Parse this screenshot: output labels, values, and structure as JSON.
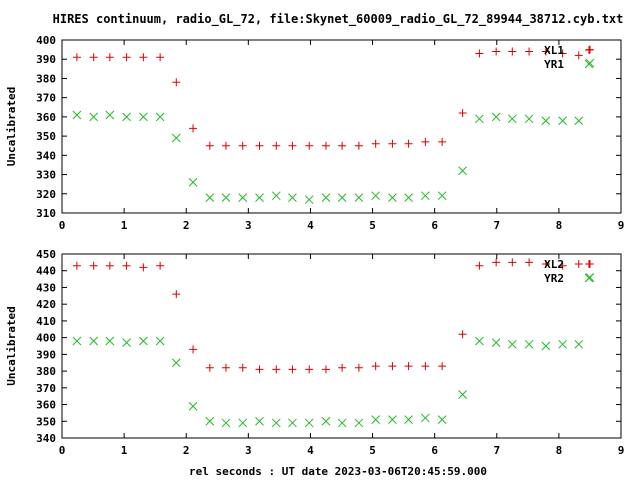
{
  "title": "HIRES continuum, radio_GL_72, file:Skynet_60009_radio_GL_72_89944_38712.cyb.txt",
  "xlabel": "rel seconds : UT date 2023-03-06T20:45:59.000",
  "colors": {
    "series1": "#dd0000",
    "series2": "#22bb22",
    "axis": "#000000"
  },
  "chart_data": [
    {
      "type": "scatter",
      "ylabel": "Uncalibrated",
      "xlim": [
        0,
        9
      ],
      "ylim": [
        310,
        400
      ],
      "xticks": [
        0,
        1,
        2,
        3,
        4,
        5,
        6,
        7,
        8,
        9
      ],
      "yticks": [
        310,
        320,
        330,
        340,
        350,
        360,
        370,
        380,
        390,
        400
      ],
      "legend_position": "top-right",
      "series": [
        {
          "name": "XL1",
          "marker": "plus",
          "color": "#dd0000",
          "x": [
            0.24,
            0.51,
            0.77,
            1.04,
            1.31,
            1.58,
            1.84,
            2.11,
            2.38,
            2.64,
            2.91,
            3.18,
            3.45,
            3.71,
            3.98,
            4.25,
            4.51,
            4.78,
            5.05,
            5.32,
            5.58,
            5.85,
            6.12,
            6.45,
            6.72,
            6.99,
            7.25,
            7.52,
            7.79,
            8.06,
            8.32,
            8.5
          ],
          "y": [
            391,
            391,
            391,
            391,
            391,
            391,
            378,
            354,
            345,
            345,
            345,
            345,
            345,
            345,
            345,
            345,
            345,
            345,
            346,
            346,
            346,
            347,
            347,
            362,
            393,
            394,
            394,
            394,
            394,
            393,
            392,
            395
          ]
        },
        {
          "name": "YR1",
          "marker": "cross",
          "color": "#22bb22",
          "x": [
            0.24,
            0.51,
            0.77,
            1.04,
            1.31,
            1.58,
            1.84,
            2.11,
            2.38,
            2.64,
            2.91,
            3.18,
            3.45,
            3.71,
            3.98,
            4.25,
            4.51,
            4.78,
            5.05,
            5.32,
            5.58,
            5.85,
            6.12,
            6.45,
            6.72,
            6.99,
            7.25,
            7.52,
            7.79,
            8.06,
            8.32,
            8.5
          ],
          "y": [
            361,
            360,
            361,
            360,
            360,
            360,
            349,
            326,
            318,
            318,
            318,
            318,
            319,
            318,
            317,
            318,
            318,
            318,
            319,
            318,
            318,
            319,
            319,
            332,
            359,
            360,
            359,
            359,
            358,
            358,
            358,
            388
          ]
        }
      ]
    },
    {
      "type": "scatter",
      "ylabel": "Uncalibrated",
      "xlim": [
        0,
        9
      ],
      "ylim": [
        340,
        450
      ],
      "xticks": [
        0,
        1,
        2,
        3,
        4,
        5,
        6,
        7,
        8,
        9
      ],
      "yticks": [
        340,
        350,
        360,
        370,
        380,
        390,
        400,
        410,
        420,
        430,
        440,
        450
      ],
      "legend_position": "top-right",
      "series": [
        {
          "name": "XL2",
          "marker": "plus",
          "color": "#dd0000",
          "x": [
            0.24,
            0.51,
            0.77,
            1.04,
            1.31,
            1.58,
            1.84,
            2.11,
            2.38,
            2.64,
            2.91,
            3.18,
            3.45,
            3.71,
            3.98,
            4.25,
            4.51,
            4.78,
            5.05,
            5.32,
            5.58,
            5.85,
            6.12,
            6.45,
            6.72,
            6.99,
            7.25,
            7.52,
            7.79,
            8.06,
            8.32,
            8.5
          ],
          "y": [
            443,
            443,
            443,
            443,
            442,
            443,
            426,
            393,
            382,
            382,
            382,
            381,
            381,
            381,
            381,
            381,
            382,
            382,
            383,
            383,
            383,
            383,
            383,
            402,
            443,
            445,
            445,
            445,
            444,
            443,
            444,
            444
          ]
        },
        {
          "name": "YR2",
          "marker": "cross",
          "color": "#22bb22",
          "x": [
            0.24,
            0.51,
            0.77,
            1.04,
            1.31,
            1.58,
            1.84,
            2.11,
            2.38,
            2.64,
            2.91,
            3.18,
            3.45,
            3.71,
            3.98,
            4.25,
            4.51,
            4.78,
            5.05,
            5.32,
            5.58,
            5.85,
            6.12,
            6.45,
            6.72,
            6.99,
            7.25,
            7.52,
            7.79,
            8.06,
            8.32,
            8.5
          ],
          "y": [
            398,
            398,
            398,
            397,
            398,
            398,
            385,
            359,
            350,
            349,
            349,
            350,
            349,
            349,
            349,
            350,
            349,
            349,
            351,
            351,
            351,
            352,
            351,
            366,
            398,
            397,
            396,
            396,
            395,
            396,
            396,
            436
          ]
        }
      ]
    }
  ]
}
